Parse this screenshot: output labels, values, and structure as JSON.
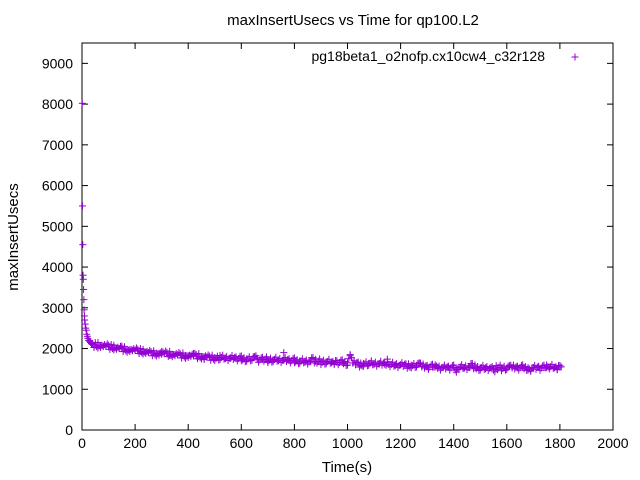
{
  "chart_data": {
    "type": "scatter",
    "title": "maxInsertUsecs vs Time for qp100.L2",
    "xlabel": "Time(s)",
    "ylabel": "maxInsertUsecs",
    "xlim": [
      0,
      2000
    ],
    "ylim": [
      0,
      9500
    ],
    "xticks": [
      "0",
      "200",
      "400",
      "600",
      "800",
      "1000",
      "1200",
      "1400",
      "1600",
      "1800",
      "2000"
    ],
    "yticks": [
      "0",
      "1000",
      "2000",
      "3000",
      "4000",
      "5000",
      "6000",
      "7000",
      "8000",
      "9000"
    ],
    "grid": false,
    "legend_position": "top-right",
    "marker": "+",
    "series": [
      {
        "name": "pg18beta1_o2nofp.cx10cw4_c32r128",
        "color": "#9400d3",
        "points": [
          [
            1,
            8020
          ],
          [
            2,
            5500
          ],
          [
            3,
            4550
          ],
          [
            4,
            3800
          ],
          [
            5,
            3700
          ],
          [
            6,
            3450
          ],
          [
            7,
            3200
          ],
          [
            8,
            2950
          ],
          [
            9,
            2800
          ],
          [
            10,
            2700
          ],
          [
            12,
            2600
          ],
          [
            14,
            2500
          ],
          [
            16,
            2450
          ],
          [
            18,
            2350
          ],
          [
            20,
            2300
          ],
          [
            22,
            2250
          ],
          [
            25,
            2200
          ],
          [
            28,
            2180
          ],
          [
            32,
            2150
          ],
          [
            36,
            2120
          ],
          [
            40,
            2100
          ],
          [
            50,
            2090
          ],
          [
            60,
            2080
          ],
          [
            70,
            2070
          ],
          [
            80,
            2060
          ],
          [
            90,
            2050
          ],
          [
            100,
            2040
          ],
          [
            110,
            2030
          ],
          [
            120,
            2020
          ],
          [
            130,
            2010
          ],
          [
            140,
            2000
          ],
          [
            150,
            2000
          ],
          [
            160,
            1990
          ],
          [
            170,
            1980
          ],
          [
            180,
            1970
          ],
          [
            190,
            1960
          ],
          [
            200,
            1950
          ],
          [
            210,
            1940
          ],
          [
            220,
            1930
          ],
          [
            230,
            1920
          ],
          [
            240,
            1910
          ],
          [
            250,
            1900
          ],
          [
            260,
            1895
          ],
          [
            270,
            1890
          ],
          [
            280,
            1885
          ],
          [
            290,
            1880
          ],
          [
            300,
            1875
          ],
          [
            310,
            1870
          ],
          [
            320,
            1865
          ],
          [
            330,
            1860
          ],
          [
            340,
            1855
          ],
          [
            350,
            1850
          ],
          [
            360,
            1845
          ],
          [
            370,
            1840
          ],
          [
            380,
            1835
          ],
          [
            390,
            1830
          ],
          [
            400,
            1825
          ],
          [
            410,
            1820
          ],
          [
            420,
            1815
          ],
          [
            430,
            1810
          ],
          [
            440,
            1805
          ],
          [
            450,
            1800
          ],
          [
            460,
            1795
          ],
          [
            470,
            1790
          ],
          [
            480,
            1785
          ],
          [
            490,
            1780
          ],
          [
            500,
            1775
          ],
          [
            520,
            1770
          ],
          [
            540,
            1765
          ],
          [
            560,
            1760
          ],
          [
            580,
            1755
          ],
          [
            600,
            1750
          ],
          [
            620,
            1745
          ],
          [
            640,
            1740
          ],
          [
            660,
            1735
          ],
          [
            680,
            1730
          ],
          [
            700,
            1725
          ],
          [
            720,
            1720
          ],
          [
            740,
            1715
          ],
          [
            760,
            1710
          ],
          [
            780,
            1705
          ],
          [
            800,
            1700
          ],
          [
            820,
            1695
          ],
          [
            840,
            1690
          ],
          [
            860,
            1685
          ],
          [
            880,
            1680
          ],
          [
            900,
            1675
          ],
          [
            920,
            1670
          ],
          [
            940,
            1665
          ],
          [
            960,
            1660
          ],
          [
            980,
            1655
          ],
          [
            1000,
            1650
          ],
          [
            1020,
            1645
          ],
          [
            1040,
            1640
          ],
          [
            1060,
            1635
          ],
          [
            1080,
            1630
          ],
          [
            1100,
            1625
          ],
          [
            1120,
            1620
          ],
          [
            1140,
            1615
          ],
          [
            1160,
            1610
          ],
          [
            1180,
            1605
          ],
          [
            1200,
            1600
          ],
          [
            1220,
            1600
          ],
          [
            1240,
            1595
          ],
          [
            1260,
            1590
          ],
          [
            1280,
            1550
          ],
          [
            1300,
            1545
          ],
          [
            1320,
            1545
          ],
          [
            1340,
            1540
          ],
          [
            1360,
            1540
          ],
          [
            1380,
            1540
          ],
          [
            1400,
            1540
          ],
          [
            1420,
            1535
          ],
          [
            1440,
            1535
          ],
          [
            1460,
            1535
          ],
          [
            1480,
            1530
          ],
          [
            1500,
            1530
          ],
          [
            1520,
            1530
          ],
          [
            1540,
            1530
          ],
          [
            1560,
            1525
          ],
          [
            1580,
            1525
          ],
          [
            1600,
            1525
          ],
          [
            1620,
            1525
          ],
          [
            1640,
            1525
          ],
          [
            1660,
            1530
          ],
          [
            1680,
            1530
          ],
          [
            1700,
            1530
          ],
          [
            1720,
            1535
          ],
          [
            1740,
            1535
          ],
          [
            1760,
            1540
          ],
          [
            1780,
            1540
          ],
          [
            1800,
            1545
          ],
          [
            1805,
            1550
          ],
          [
            60,
            2150
          ],
          [
            120,
            2080
          ],
          [
            150,
            2060
          ],
          [
            230,
            1980
          ],
          [
            300,
            1930
          ],
          [
            330,
            1830
          ],
          [
            420,
            1880
          ],
          [
            460,
            1730
          ],
          [
            520,
            1830
          ],
          [
            600,
            1700
          ],
          [
            650,
            1800
          ],
          [
            700,
            1680
          ],
          [
            760,
            1900
          ],
          [
            800,
            1650
          ],
          [
            870,
            1750
          ],
          [
            950,
            1610
          ],
          [
            1010,
            1850
          ],
          [
            1050,
            1590
          ],
          [
            1150,
            1670
          ],
          [
            1230,
            1570
          ],
          [
            1270,
            1650
          ],
          [
            1330,
            1600
          ],
          [
            1410,
            1490
          ],
          [
            1470,
            1590
          ],
          [
            1550,
            1470
          ],
          [
            1610,
            1580
          ],
          [
            1690,
            1470
          ],
          [
            1750,
            1600
          ],
          [
            1790,
            1480
          ]
        ]
      }
    ]
  }
}
